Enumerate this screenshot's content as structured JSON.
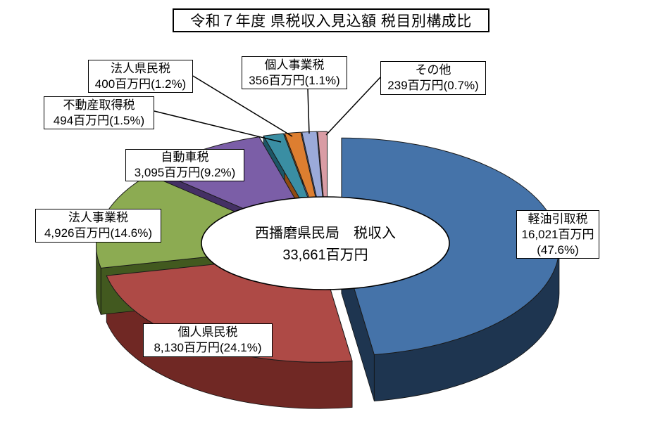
{
  "chart_data": {
    "type": "pie",
    "style": "3d-exploded-pie-with-donut-hole",
    "title": "令和７年度 県税収入見込額 税目別構成比",
    "center": {
      "line1": "西播磨県民局　税収入",
      "line2": "33,661百万円"
    },
    "total_value": 33661,
    "unit": "百万円",
    "legend_position": "callout-labels",
    "slices": [
      {
        "name": "軽油引取税",
        "value": 16021,
        "pct": 47.6,
        "color": "#4573A9",
        "side_color": "#1E3550",
        "label": {
          "line1": "軽油引取税",
          "line2": "16,021百万円",
          "line3": "(47.6%)"
        }
      },
      {
        "name": "個人県民税",
        "value": 8130,
        "pct": 24.1,
        "color": "#AE4A46",
        "side_color": "#702824",
        "label": {
          "line1": "個人県民税",
          "line2": "8,130百万円(24.1%)"
        }
      },
      {
        "name": "法人事業税",
        "value": 4926,
        "pct": 14.6,
        "color": "#8CAB52",
        "side_color": "#42591F",
        "label": {
          "line1": "法人事業税",
          "line2": "4,926百万円(14.6%)"
        }
      },
      {
        "name": "自動車税",
        "value": 3095,
        "pct": 9.2,
        "color": "#7B5EA7",
        "side_color": "#443064",
        "label": {
          "line1": "自動車税",
          "line2": "3,095百万円(9.2%)"
        }
      },
      {
        "name": "不動産取得税",
        "value": 494,
        "pct": 1.5,
        "color": "#3A8EA3",
        "side_color": "#1C5666",
        "label": {
          "line1": "不動産取得税",
          "line2": "494百万円(1.5%)"
        }
      },
      {
        "name": "法人県民税",
        "value": 400,
        "pct": 1.2,
        "color": "#DD7E30",
        "side_color": "#8F4B12",
        "label": {
          "line1": "法人県民税",
          "line2": "400百万円(1.2%)"
        }
      },
      {
        "name": "個人事業税",
        "value": 356,
        "pct": 1.1,
        "color": "#9BAAD9",
        "side_color": "#5A6899",
        "label": {
          "line1": "個人事業税",
          "line2": "356百万円(1.1%)"
        }
      },
      {
        "name": "その他",
        "value": 239,
        "pct": 0.7,
        "color": "#D99CA4",
        "side_color": "#9A626C",
        "label": {
          "line1": "その他",
          "line2": "239百万円(0.7%)"
        }
      }
    ]
  }
}
